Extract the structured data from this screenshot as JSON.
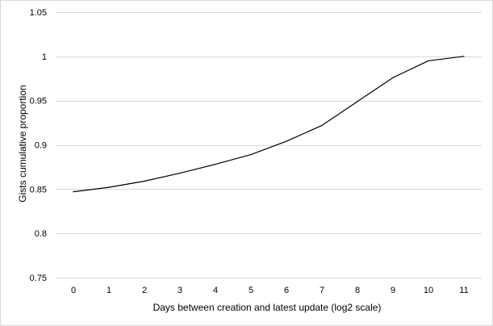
{
  "chart_data": {
    "type": "line",
    "title": "",
    "xlabel": "Days between  creation and latest update (log2 scale)",
    "ylabel": "Gists cumulative proportion",
    "x": [
      0,
      1,
      2,
      3,
      4,
      5,
      6,
      7,
      8,
      9,
      10,
      11
    ],
    "x_tick_labels": [
      "0",
      "1",
      "2",
      "3",
      "4",
      "5",
      "6",
      "7",
      "8",
      "9",
      "10",
      "11"
    ],
    "y_tick_values": [
      0.75,
      0.8,
      0.85,
      0.9,
      0.95,
      1.0,
      1.05
    ],
    "y_tick_labels": [
      "0.75",
      "0.8",
      "0.85",
      "0.9",
      "0.95",
      "1",
      "1.05"
    ],
    "ylim": [
      0.75,
      1.05
    ],
    "grid": true,
    "legend": "none",
    "series": [
      {
        "values": [
          0.847,
          0.852,
          0.859,
          0.868,
          0.878,
          0.889,
          0.904,
          0.922,
          0.949,
          0.976,
          0.995,
          1.0
        ],
        "color": "#000000"
      }
    ],
    "colors": {
      "gridline": "#d9d9d9",
      "line": "#000000",
      "frame": "#d9d9d9"
    }
  }
}
